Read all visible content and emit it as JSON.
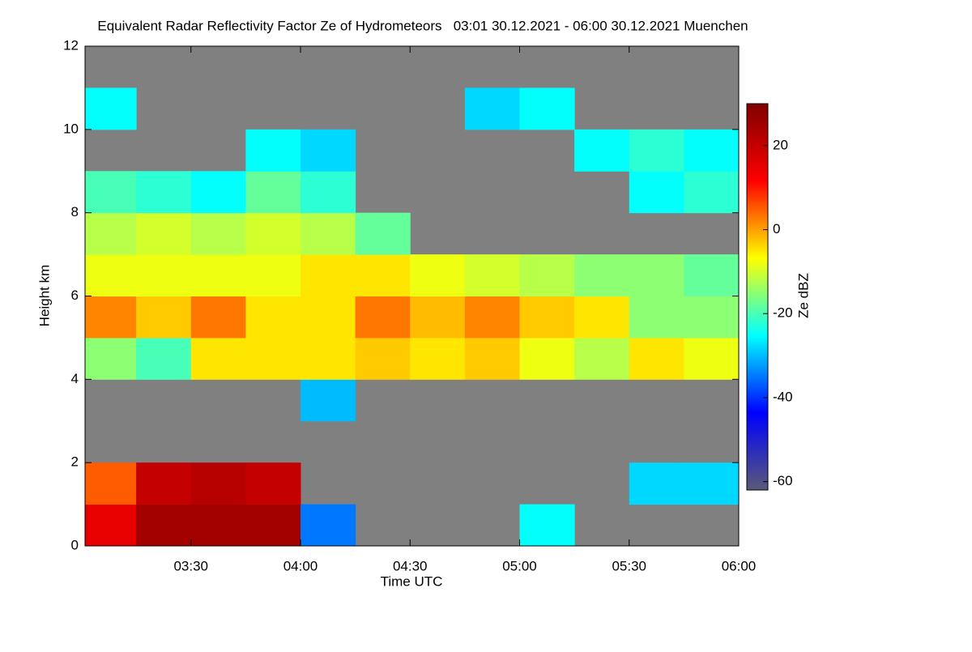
{
  "chart_data": {
    "type": "heatmap",
    "title": "Equivalent Radar Reflectivity Factor Ze of Hydrometeors   03:01 30.12.2021 - 06:00 30.12.2021 Muenchen",
    "xlabel": "Time UTC",
    "ylabel": "Height km",
    "colorbar_label": "Ze dBZ",
    "background": "#808080",
    "colormap": [
      "#5a5a78",
      "#0000ff",
      "#00ffff",
      "#ffff00",
      "#ff0000",
      "#800000"
    ],
    "xlim": [
      3.0167,
      6.0
    ],
    "xticks": [
      {
        "value": 3.5,
        "label": "03:30"
      },
      {
        "value": 4.0,
        "label": "04:00"
      },
      {
        "value": 4.5,
        "label": "04:30"
      },
      {
        "value": 5.0,
        "label": "05:00"
      },
      {
        "value": 5.5,
        "label": "05:30"
      },
      {
        "value": 6.0,
        "label": "06:00"
      }
    ],
    "ylim": [
      0,
      12
    ],
    "yticks": [
      0,
      2,
      4,
      6,
      8,
      10,
      12
    ],
    "clim": [
      -62,
      30
    ],
    "cticks": [
      -60,
      -40,
      -20,
      0,
      20
    ],
    "x_bins": [
      3.0167,
      3.25,
      3.5,
      3.75,
      4.0,
      4.25,
      4.5,
      4.75,
      5.0,
      5.25,
      5.5,
      5.75,
      6.0
    ],
    "y_bins": [
      0,
      1,
      2,
      3,
      4,
      5,
      6,
      7,
      8,
      9,
      10,
      11,
      12
    ],
    "z": [
      [
        15,
        25,
        25,
        25,
        -35,
        null,
        null,
        null,
        -25,
        null,
        null,
        null
      ],
      [
        5,
        20,
        22,
        20,
        null,
        null,
        null,
        null,
        null,
        null,
        -28,
        -28
      ],
      [
        null,
        null,
        null,
        null,
        null,
        null,
        null,
        null,
        null,
        null,
        null,
        null
      ],
      [
        null,
        null,
        null,
        null,
        -30,
        null,
        null,
        null,
        null,
        null,
        null,
        null
      ],
      [
        -15,
        -20,
        -5,
        -5,
        -5,
        -3,
        -5,
        -3,
        -8,
        -12,
        -5,
        -8
      ],
      [
        2,
        -3,
        3,
        -5,
        -5,
        3,
        -2,
        2,
        -3,
        -5,
        -15,
        -15
      ],
      [
        -8,
        -8,
        -8,
        -8,
        -5,
        -5,
        -8,
        -10,
        -12,
        -15,
        -15,
        -18
      ],
      [
        -12,
        -10,
        -12,
        -10,
        -12,
        -18,
        null,
        null,
        null,
        null,
        null,
        null
      ],
      [
        -20,
        -22,
        -25,
        -18,
        -22,
        null,
        null,
        null,
        null,
        null,
        -25,
        -22
      ],
      [
        null,
        null,
        null,
        -25,
        -28,
        null,
        null,
        null,
        null,
        -25,
        -22,
        -25
      ],
      [
        -25,
        null,
        null,
        null,
        null,
        null,
        null,
        -28,
        -25,
        null,
        null,
        null
      ],
      [
        null,
        null,
        null,
        null,
        null,
        null,
        null,
        null,
        null,
        null,
        null,
        null
      ]
    ]
  }
}
